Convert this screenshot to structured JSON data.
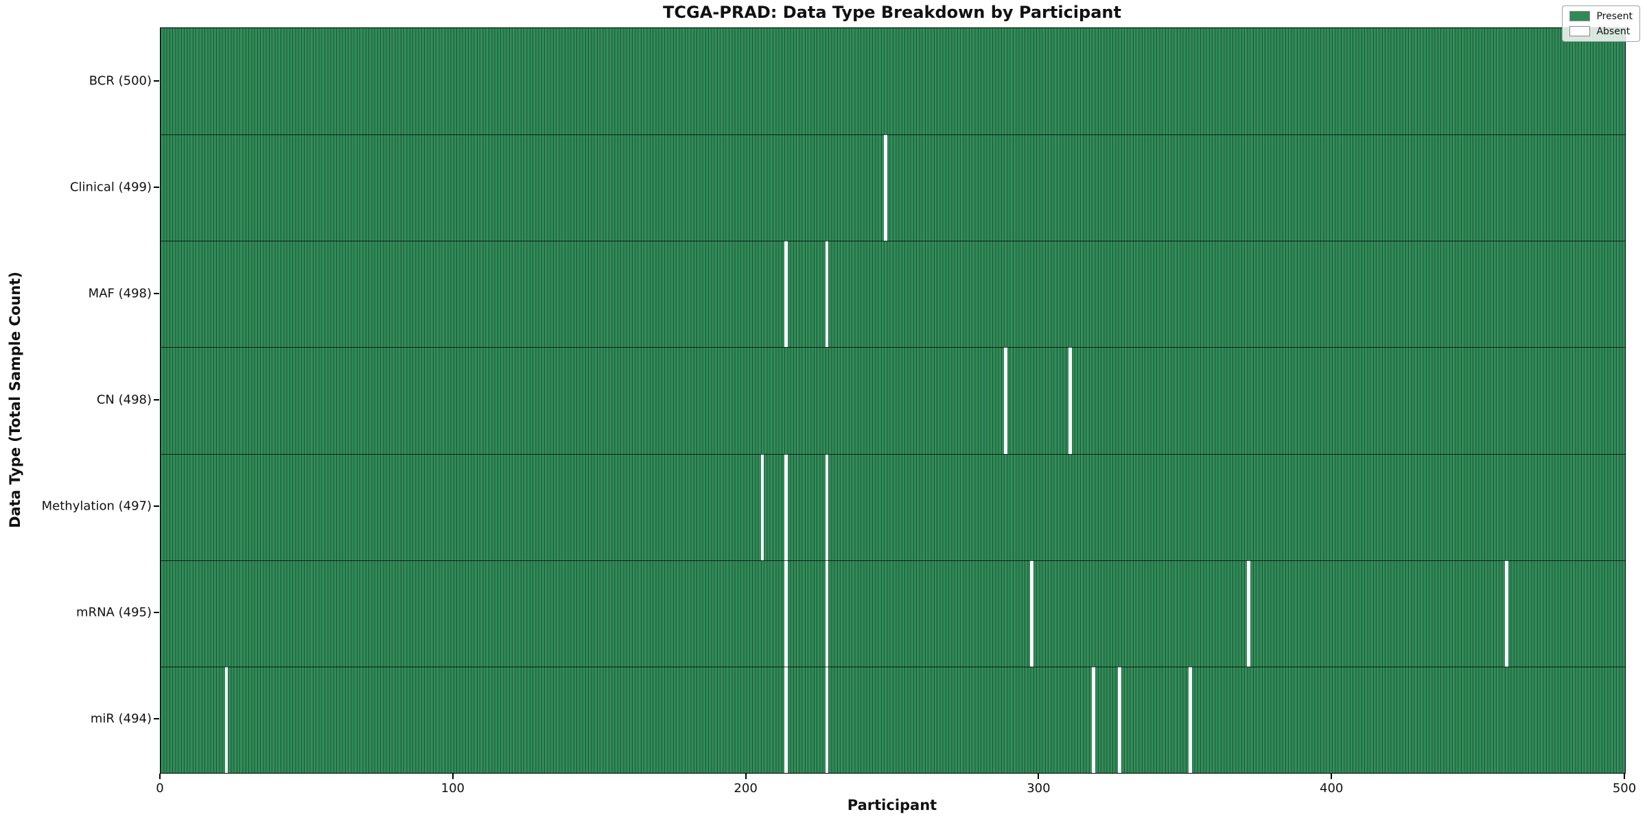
{
  "title": "TCGA-PRAD: Data Type Breakdown by Participant",
  "legend": {
    "present_label": "Present",
    "absent_label": "Absent"
  },
  "colors": {
    "present": "#2E8B57",
    "absent": "#FFFFFF"
  },
  "chart_data": {
    "type": "heatmap",
    "title": "TCGA-PRAD: Data Type Breakdown by Participant",
    "xlabel": "Participant",
    "ylabel": "Data Type (Total Sample Count)",
    "xlim": [
      0,
      500
    ],
    "x_ticks": [
      0,
      100,
      200,
      300,
      400,
      500
    ],
    "n_participants": 500,
    "grid": false,
    "legend_position": "upper right",
    "legend_entries": [
      {
        "label": "Present",
        "color": "#2E8B57"
      },
      {
        "label": "Absent",
        "color": "#FFFFFF"
      }
    ],
    "rows": [
      {
        "label": "BCR (500)",
        "data_type": "BCR",
        "total": 500,
        "absent_participants": []
      },
      {
        "label": "Clinical (499)",
        "data_type": "Clinical",
        "total": 499,
        "absent_participants": [
          247
        ]
      },
      {
        "label": "MAF (498)",
        "data_type": "MAF",
        "total": 498,
        "absent_participants": [
          213,
          227
        ]
      },
      {
        "label": "CN (498)",
        "data_type": "CN",
        "total": 498,
        "absent_participants": [
          288,
          310
        ]
      },
      {
        "label": "Methylation (497)",
        "data_type": "Methylation",
        "total": 497,
        "absent_participants": [
          205,
          213,
          227
        ]
      },
      {
        "label": "mRNA (495)",
        "data_type": "mRNA",
        "total": 495,
        "absent_participants": [
          213,
          227,
          297,
          371,
          459
        ]
      },
      {
        "label": "miR (494)",
        "data_type": "miR",
        "total": 494,
        "absent_participants": [
          22,
          213,
          227,
          318,
          327,
          351
        ]
      }
    ]
  }
}
